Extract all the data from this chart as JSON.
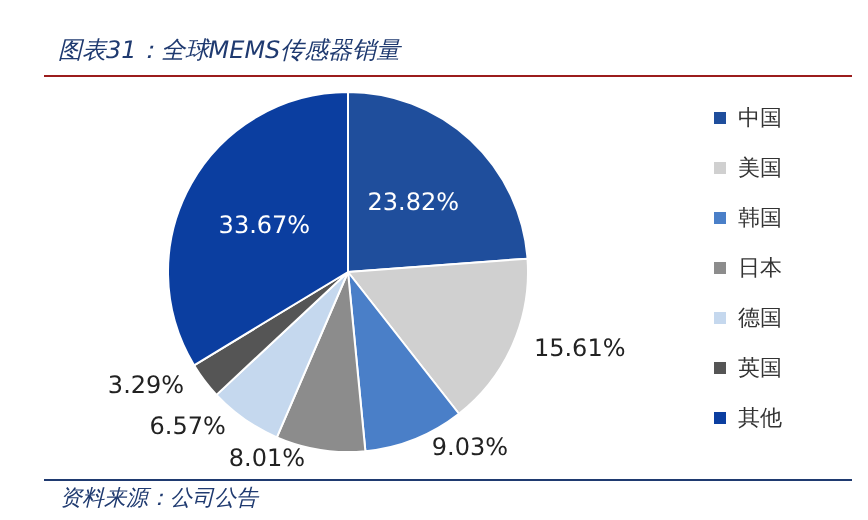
{
  "chart_data": {
    "type": "pie",
    "title": "图表31：全球MEMS传感器销量",
    "categories": [
      "中国",
      "美国",
      "韩国",
      "日本",
      "德国",
      "英国",
      "其他"
    ],
    "values": [
      23.82,
      15.61,
      9.03,
      8.01,
      6.57,
      3.29,
      33.67
    ],
    "colors": [
      "#1f4e9c",
      "#d0d0d0",
      "#4a7fc8",
      "#8c8c8c",
      "#c5d8ee",
      "#555555",
      "#0b3ea0"
    ],
    "value_labels": [
      "23.82%",
      "15.61%",
      "9.03%",
      "8.01%",
      "6.57%",
      "3.29%",
      "33.67%"
    ],
    "legend": "right",
    "annotations": [
      "资料来源：公司公告"
    ]
  }
}
